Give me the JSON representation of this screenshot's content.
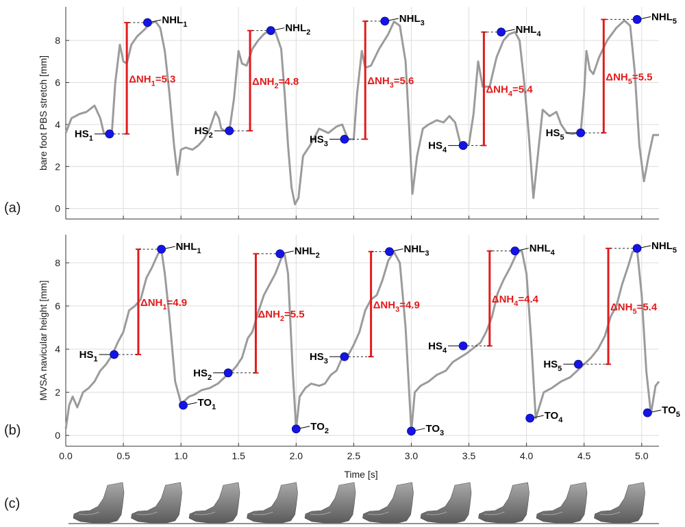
{
  "panel_labels": [
    "(a)",
    "(b)",
    "(c)"
  ],
  "x_axis_label": "Time [s]",
  "chart_data": [
    {
      "type": "line",
      "panel": "(a)",
      "ylabel": "bare foot PBS stretch [mm]",
      "xlim": [
        0,
        5.15
      ],
      "ylim": [
        -0.5,
        9.6
      ],
      "xticks": [
        0.0,
        0.5,
        1.0,
        1.5,
        2.0,
        2.5,
        3.0,
        3.5,
        4.0,
        4.5,
        5.0
      ],
      "xticklabels": [],
      "yticks": [
        0,
        2,
        4,
        6,
        8
      ],
      "grid": true,
      "line_color": "#9b9b9b",
      "series": [
        {
          "x": [
            0.0,
            0.05,
            0.12,
            0.18,
            0.25,
            0.3,
            0.33,
            0.35,
            0.37,
            0.4,
            0.43,
            0.47,
            0.5,
            0.53,
            0.57,
            0.62,
            0.68,
            0.73,
            0.78,
            0.82,
            0.86,
            0.9,
            0.94,
            0.97,
            1.0,
            1.04,
            1.1,
            1.15,
            1.2,
            1.25,
            1.3,
            1.33,
            1.35,
            1.38,
            1.42,
            1.46,
            1.5,
            1.53,
            1.57,
            1.62,
            1.67,
            1.72,
            1.77,
            1.82,
            1.87,
            1.9,
            1.93,
            1.96,
            1.99,
            2.02,
            2.06,
            2.12,
            2.2,
            2.28,
            2.35,
            2.4,
            2.45,
            2.5,
            2.53,
            2.57,
            2.6,
            2.65,
            2.72,
            2.8,
            2.85,
            2.9,
            2.95,
            2.98,
            3.01,
            3.05,
            3.1,
            3.15,
            3.22,
            3.28,
            3.33,
            3.38,
            3.43,
            3.46,
            3.5,
            3.54,
            3.58,
            3.62,
            3.68,
            3.74,
            3.8,
            3.85,
            3.9,
            3.94,
            3.98,
            4.02,
            4.06,
            4.1,
            4.14,
            4.2,
            4.26,
            4.3,
            4.35,
            4.4,
            4.44,
            4.47,
            4.5,
            4.52,
            4.55,
            4.58,
            4.63,
            4.7,
            4.78,
            4.85,
            4.9,
            4.94,
            4.98,
            5.02,
            5.06,
            5.1,
            5.15
          ],
          "y": [
            3.6,
            4.3,
            4.5,
            4.6,
            4.9,
            4.3,
            3.6,
            3.55,
            3.55,
            3.6,
            6.0,
            7.8,
            7.0,
            6.9,
            7.8,
            8.2,
            8.5,
            8.8,
            8.9,
            8.6,
            7.5,
            5.5,
            3.0,
            1.6,
            2.8,
            2.9,
            2.8,
            3.0,
            3.3,
            3.8,
            4.6,
            4.3,
            3.8,
            3.7,
            3.7,
            5.2,
            7.5,
            6.9,
            6.8,
            7.6,
            8.0,
            8.3,
            8.5,
            8.4,
            7.6,
            5.5,
            3.0,
            1.0,
            0.2,
            0.5,
            2.5,
            3.0,
            3.8,
            3.6,
            3.9,
            4.0,
            3.3,
            3.3,
            5.5,
            7.5,
            6.7,
            6.8,
            7.6,
            8.3,
            8.9,
            8.7,
            7.0,
            4.0,
            0.7,
            2.5,
            3.8,
            4.0,
            4.2,
            4.1,
            4.4,
            4.1,
            3.0,
            3.0,
            3.05,
            4.5,
            7.0,
            5.8,
            5.8,
            7.2,
            8.0,
            8.3,
            8.4,
            8.0,
            6.0,
            3.5,
            0.5,
            2.6,
            4.7,
            4.4,
            4.6,
            4.0,
            3.6,
            3.55,
            3.6,
            3.6,
            5.5,
            7.5,
            6.6,
            6.4,
            7.2,
            8.0,
            8.6,
            8.95,
            8.7,
            6.5,
            3.0,
            1.3,
            2.5,
            3.5,
            3.5
          ]
        }
      ],
      "markers": [
        {
          "label": "HS",
          "sub": "1",
          "x": 0.38,
          "y": 3.55
        },
        {
          "label": "NHL",
          "sub": "1",
          "x": 0.71,
          "y": 8.85
        },
        {
          "label": "HS",
          "sub": "2",
          "x": 1.42,
          "y": 3.7
        },
        {
          "label": "NHL",
          "sub": "2",
          "x": 1.78,
          "y": 8.47
        },
        {
          "label": "HS",
          "sub": "3",
          "x": 2.42,
          "y": 3.3
        },
        {
          "label": "NHL",
          "sub": "3",
          "x": 2.77,
          "y": 8.92
        },
        {
          "label": "HS",
          "sub": "4",
          "x": 3.45,
          "y": 3.0
        },
        {
          "label": "NHL",
          "sub": "4",
          "x": 3.78,
          "y": 8.4
        },
        {
          "label": "HS",
          "sub": "5",
          "x": 4.47,
          "y": 3.6
        },
        {
          "label": "NHL",
          "sub": "5",
          "x": 4.96,
          "y": 9.0
        }
      ],
      "delta_nh": [
        {
          "label": "ΔNH",
          "sub": "1",
          "value": "=5.3",
          "x": 0.53,
          "y0": 3.55,
          "y1": 8.85
        },
        {
          "label": "ΔNH",
          "sub": "2",
          "value": "=4.8",
          "x": 1.6,
          "y0": 3.7,
          "y1": 8.47
        },
        {
          "label": "ΔNH",
          "sub": "3",
          "value": "=5.6",
          "x": 2.6,
          "y0": 3.3,
          "y1": 8.92
        },
        {
          "label": "ΔNH",
          "sub": "4",
          "value": "=5.4",
          "x": 3.63,
          "y0": 3.0,
          "y1": 8.4
        },
        {
          "label": "ΔNH",
          "sub": "5",
          "value": "=5.5",
          "x": 4.67,
          "y0": 3.6,
          "y1": 9.0
        }
      ]
    },
    {
      "type": "line",
      "panel": "(b)",
      "ylabel": "MVSA navicular height [mm]",
      "xlim": [
        0,
        5.15
      ],
      "ylim": [
        -0.5,
        9.3
      ],
      "xticks": [
        0.0,
        0.5,
        1.0,
        1.5,
        2.0,
        2.5,
        3.0,
        3.5,
        4.0,
        4.5,
        5.0
      ],
      "xticklabels": [
        "0.0",
        "0.5",
        "1.0",
        "1.5",
        "2.0",
        "2.5",
        "3.0",
        "3.5",
        "4.0",
        "4.5",
        "5.0"
      ],
      "yticks": [
        0,
        2,
        4,
        6,
        8
      ],
      "grid": true,
      "line_color": "#9b9b9b",
      "series": [
        {
          "x": [
            0.0,
            0.03,
            0.06,
            0.1,
            0.15,
            0.2,
            0.25,
            0.3,
            0.35,
            0.4,
            0.45,
            0.5,
            0.55,
            0.6,
            0.65,
            0.7,
            0.75,
            0.8,
            0.83,
            0.86,
            0.9,
            0.95,
            1.0,
            1.03,
            1.07,
            1.12,
            1.18,
            1.25,
            1.32,
            1.38,
            1.43,
            1.48,
            1.53,
            1.58,
            1.62,
            1.67,
            1.72,
            1.77,
            1.82,
            1.87,
            1.9,
            1.93,
            1.97,
            2.0,
            2.03,
            2.08,
            2.13,
            2.2,
            2.25,
            2.3,
            2.35,
            2.4,
            2.45,
            2.5,
            2.55,
            2.6,
            2.65,
            2.7,
            2.75,
            2.8,
            2.85,
            2.9,
            2.95,
            3.0,
            3.03,
            3.08,
            3.15,
            3.22,
            3.3,
            3.36,
            3.42,
            3.48,
            3.55,
            3.6,
            3.65,
            3.7,
            3.75,
            3.8,
            3.86,
            3.92,
            3.96,
            4.0,
            4.04,
            4.08,
            4.15,
            4.22,
            4.3,
            4.38,
            4.44,
            4.5,
            4.56,
            4.62,
            4.68,
            4.73,
            4.78,
            4.83,
            4.88,
            4.92,
            4.96,
            5.0,
            5.04,
            5.08,
            5.12,
            5.15
          ],
          "y": [
            0.3,
            1.4,
            1.8,
            1.3,
            2.0,
            2.2,
            2.5,
            3.0,
            3.3,
            3.7,
            4.3,
            4.8,
            5.8,
            6.0,
            6.3,
            7.3,
            7.8,
            8.4,
            8.6,
            7.5,
            5.5,
            2.5,
            1.5,
            1.6,
            1.8,
            1.9,
            2.1,
            2.2,
            2.4,
            2.7,
            2.9,
            3.2,
            3.6,
            4.5,
            4.8,
            5.7,
            6.5,
            7.0,
            7.5,
            8.2,
            8.4,
            7.5,
            3.0,
            0.3,
            1.8,
            2.2,
            2.4,
            2.3,
            2.4,
            2.8,
            3.0,
            3.6,
            3.7,
            4.2,
            4.8,
            5.8,
            6.3,
            6.5,
            7.2,
            8.1,
            8.5,
            8.0,
            5.0,
            0.2,
            2.0,
            2.3,
            2.5,
            2.8,
            3.0,
            3.4,
            3.6,
            3.8,
            4.1,
            4.3,
            4.8,
            5.5,
            6.6,
            7.2,
            7.8,
            8.5,
            8.55,
            7.5,
            4.5,
            0.8,
            2.0,
            2.2,
            2.5,
            2.7,
            3.0,
            3.3,
            3.6,
            4.0,
            4.6,
            5.5,
            6.0,
            7.0,
            7.8,
            8.5,
            8.6,
            6.5,
            3.0,
            1.0,
            2.3,
            2.5
          ]
        }
      ],
      "markers": [
        {
          "label": "HS",
          "sub": "1",
          "x": 0.42,
          "y": 3.75
        },
        {
          "label": "NHL",
          "sub": "1",
          "x": 0.83,
          "y": 8.63
        },
        {
          "label": "TO",
          "sub": "1",
          "x": 1.02,
          "y": 1.4
        },
        {
          "label": "HS",
          "sub": "2",
          "x": 1.41,
          "y": 2.9
        },
        {
          "label": "NHL",
          "sub": "2",
          "x": 1.86,
          "y": 8.42
        },
        {
          "label": "TO",
          "sub": "2",
          "x": 2.0,
          "y": 0.3
        },
        {
          "label": "HS",
          "sub": "3",
          "x": 2.42,
          "y": 3.65
        },
        {
          "label": "NHL",
          "sub": "3",
          "x": 2.81,
          "y": 8.52
        },
        {
          "label": "TO",
          "sub": "3",
          "x": 3.0,
          "y": 0.2
        },
        {
          "label": "HS",
          "sub": "4",
          "x": 3.45,
          "y": 4.15
        },
        {
          "label": "NHL",
          "sub": "4",
          "x": 3.9,
          "y": 8.55
        },
        {
          "label": "TO",
          "sub": "4",
          "x": 4.03,
          "y": 0.8
        },
        {
          "label": "HS",
          "sub": "5",
          "x": 4.45,
          "y": 3.3
        },
        {
          "label": "NHL",
          "sub": "5",
          "x": 4.96,
          "y": 8.67
        },
        {
          "label": "TO",
          "sub": "5",
          "x": 5.05,
          "y": 1.05
        }
      ],
      "delta_nh": [
        {
          "label": "ΔNH",
          "sub": "1",
          "value": "=4.9",
          "x": 0.63,
          "y0": 3.75,
          "y1": 8.63
        },
        {
          "label": "ΔNH",
          "sub": "2",
          "value": "=5.5",
          "x": 1.65,
          "y0": 2.9,
          "y1": 8.42
        },
        {
          "label": "ΔNH",
          "sub": "3",
          "value": "=4.9",
          "x": 2.65,
          "y0": 3.65,
          "y1": 8.52
        },
        {
          "label": "ΔNH",
          "sub": "4",
          "value": "=4.4",
          "x": 3.68,
          "y0": 4.15,
          "y1": 8.55
        },
        {
          "label": "ΔNH",
          "sub": "5",
          "value": "=5.4",
          "x": 4.71,
          "y0": 3.3,
          "y1": 8.67
        }
      ]
    }
  ],
  "foot_images": {
    "count": 10,
    "icon": "foot-model-icon"
  }
}
